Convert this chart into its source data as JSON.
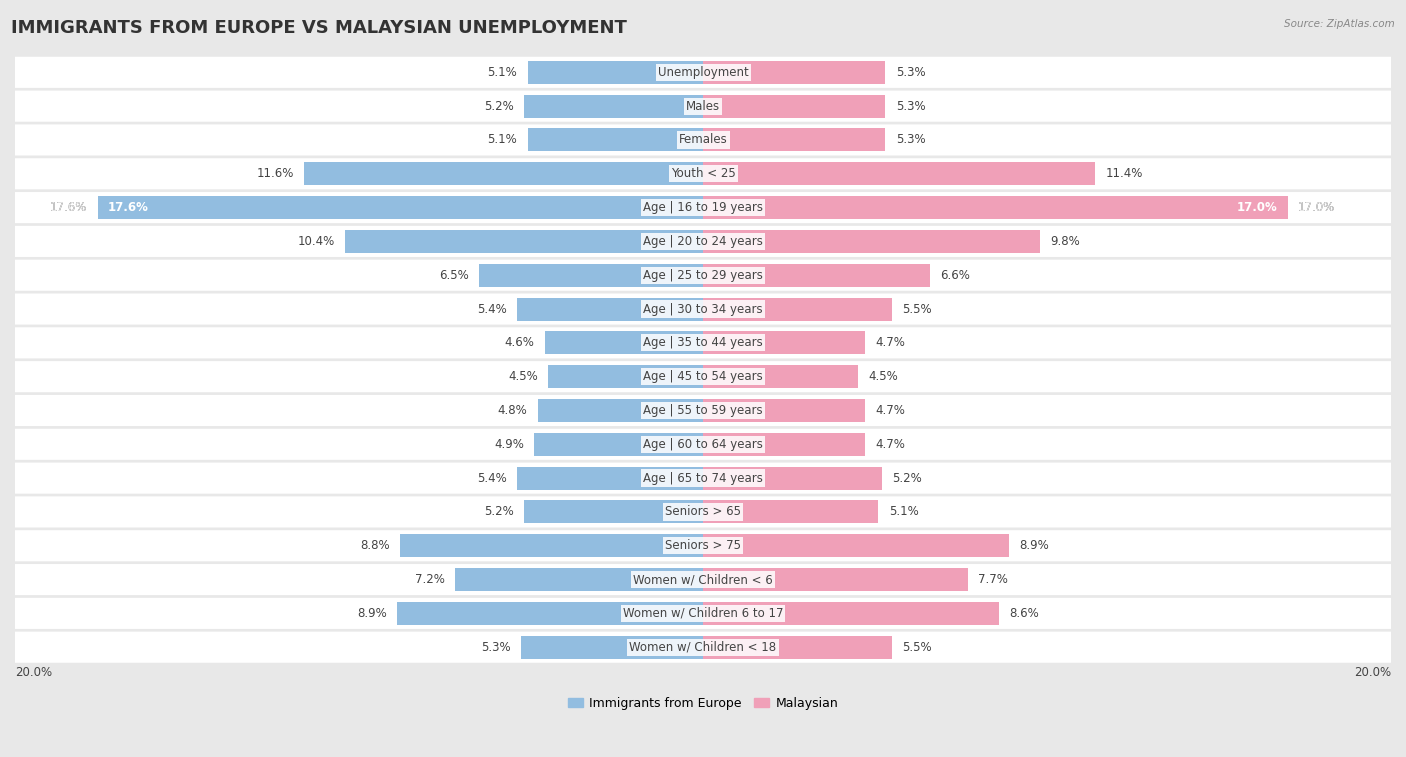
{
  "title": "IMMIGRANTS FROM EUROPE VS MALAYSIAN UNEMPLOYMENT",
  "source": "Source: ZipAtlas.com",
  "categories": [
    "Unemployment",
    "Males",
    "Females",
    "Youth < 25",
    "Age | 16 to 19 years",
    "Age | 20 to 24 years",
    "Age | 25 to 29 years",
    "Age | 30 to 34 years",
    "Age | 35 to 44 years",
    "Age | 45 to 54 years",
    "Age | 55 to 59 years",
    "Age | 60 to 64 years",
    "Age | 65 to 74 years",
    "Seniors > 65",
    "Seniors > 75",
    "Women w/ Children < 6",
    "Women w/ Children 6 to 17",
    "Women w/ Children < 18"
  ],
  "left_values": [
    5.1,
    5.2,
    5.1,
    11.6,
    17.6,
    10.4,
    6.5,
    5.4,
    4.6,
    4.5,
    4.8,
    4.9,
    5.4,
    5.2,
    8.8,
    7.2,
    8.9,
    5.3
  ],
  "right_values": [
    5.3,
    5.3,
    5.3,
    11.4,
    17.0,
    9.8,
    6.6,
    5.5,
    4.7,
    4.5,
    4.7,
    4.7,
    5.2,
    5.1,
    8.9,
    7.7,
    8.6,
    5.5
  ],
  "left_color": "#92BDE0",
  "right_color": "#F0A0B8",
  "left_label": "Immigrants from Europe",
  "right_label": "Malaysian",
  "xlim": 20.0,
  "background_color": "#e8e8e8",
  "row_color": "#ffffff",
  "title_fontsize": 13,
  "label_fontsize": 8.5,
  "value_fontsize": 8.5
}
